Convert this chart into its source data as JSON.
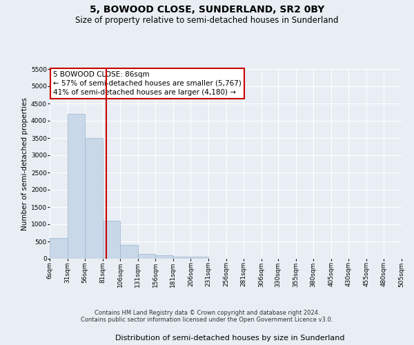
{
  "title": "5, BOWOOD CLOSE, SUNDERLAND, SR2 0BY",
  "subtitle": "Size of property relative to semi-detached houses in Sunderland",
  "xlabel": "Distribution of semi-detached houses by size in Sunderland",
  "ylabel": "Number of semi-detached properties",
  "footer_line1": "Contains HM Land Registry data © Crown copyright and database right 2024.",
  "footer_line2": "Contains public sector information licensed under the Open Government Licence v3.0.",
  "annotation_title": "5 BOWOOD CLOSE: 86sqm",
  "annotation_line1": "← 57% of semi-detached houses are smaller (5,767)",
  "annotation_line2": "41% of semi-detached houses are larger (4,180) →",
  "vline_x": 86,
  "bin_edges": [
    6,
    31,
    56,
    81,
    106,
    131,
    156,
    181,
    206,
    231,
    256,
    281,
    306,
    330,
    355,
    380,
    405,
    430,
    455,
    480,
    505
  ],
  "bin_labels": [
    "6sqm",
    "31sqm",
    "56sqm",
    "81sqm",
    "106sqm",
    "131sqm",
    "156sqm",
    "181sqm",
    "206sqm",
    "231sqm",
    "256sqm",
    "281sqm",
    "306sqm",
    "330sqm",
    "355sqm",
    "380sqm",
    "405sqm",
    "430sqm",
    "455sqm",
    "480sqm",
    "505sqm"
  ],
  "bar_heights": [
    600,
    4200,
    3500,
    1100,
    400,
    150,
    100,
    70,
    70,
    0,
    0,
    0,
    0,
    0,
    0,
    0,
    0,
    0,
    0,
    0
  ],
  "bar_color": "#c8d8e8",
  "bar_edge_color": "#9ab4cc",
  "vline_color": "#cc0000",
  "ylim": [
    0,
    5500
  ],
  "yticks": [
    0,
    500,
    1000,
    1500,
    2000,
    2500,
    3000,
    3500,
    4000,
    4500,
    5000,
    5500
  ],
  "annotation_box_facecolor": "white",
  "annotation_box_edgecolor": "#cc0000",
  "background_color": "#e8eef4",
  "grid_color": "#ffffff",
  "title_fontsize": 10,
  "subtitle_fontsize": 8.5,
  "ylabel_fontsize": 7.5,
  "xlabel_fontsize": 8,
  "tick_fontsize": 6.5,
  "annotation_fontsize": 7.5,
  "footer_fontsize": 6
}
